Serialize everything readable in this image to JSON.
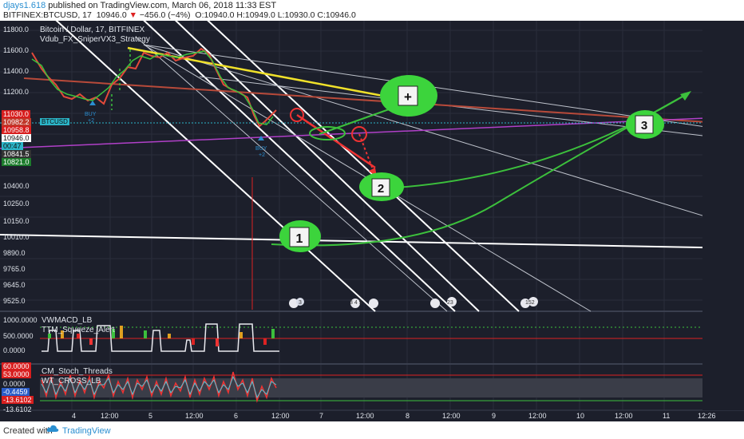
{
  "header": {
    "user": "djays1.618",
    "published": " published on TradingView.com, March 06, 2018 11:33 EST",
    "symbol": "BITFINEX:BTCUSD, 17",
    "last": "10946.0",
    "change": "−456.0 (−4%)",
    "ohlc": "O:10940.0 H:10949.0 L:10930.0 C:10946.0"
  },
  "chart": {
    "title": "Bitcoin / Dollar, 17, BITFINEX",
    "strategy": "Vdub_FX_SniperVX3_Strategy",
    "symbol_tag": "BTCUSD",
    "price_axis": [
      "11800.0",
      "11600.0",
      "11400.0",
      "11200.0",
      "10400.0",
      "10250.0",
      "10150.0",
      "10010.0",
      "9890.0",
      "9765.0",
      "9645.0",
      "9525.0"
    ],
    "price_tags": [
      {
        "label": "11030.0",
        "color": "#d81e1e"
      },
      {
        "label": "10982.2",
        "color": "#c0392b"
      },
      {
        "label": "10958.8",
        "color": "#d81e1e"
      },
      {
        "label": "10946.0",
        "color": "#ffffff"
      },
      {
        "label": "00:47",
        "color": "#2bb5c8"
      },
      {
        "label": "10841.5",
        "color": "#333333"
      },
      {
        "label": "10821.0",
        "color": "#1c7c2c"
      }
    ],
    "annotations": [
      "+",
      "1",
      "2",
      "3"
    ],
    "buy_label": "BUY",
    "buy_sub": "+2",
    "events": [
      "3",
      "3 4 5",
      "23",
      "152"
    ],
    "indicator1": {
      "name": "VWMACD_LB",
      "sub": "TTM_Squeeze_Alert",
      "axis": [
        "1000.0000",
        "500.0000",
        "0.0000"
      ]
    },
    "indicator2": {
      "name": "CM_Stoch_Threads",
      "sub": "WT_CROSS_LB",
      "axis": [
        "60.0000",
        "53.0000",
        "0.0000",
        "-0.4459",
        "-13.6102",
        "-13.6102"
      ]
    },
    "time_axis": [
      "4",
      "12:00",
      "5",
      "12:00",
      "6",
      "12:00",
      "7",
      "12:00",
      "8",
      "12:00",
      "9",
      "12:00",
      "10",
      "12:00",
      "11",
      "12:26"
    ]
  },
  "footer": {
    "created_with": "Created with",
    "brand": "TradingView"
  }
}
